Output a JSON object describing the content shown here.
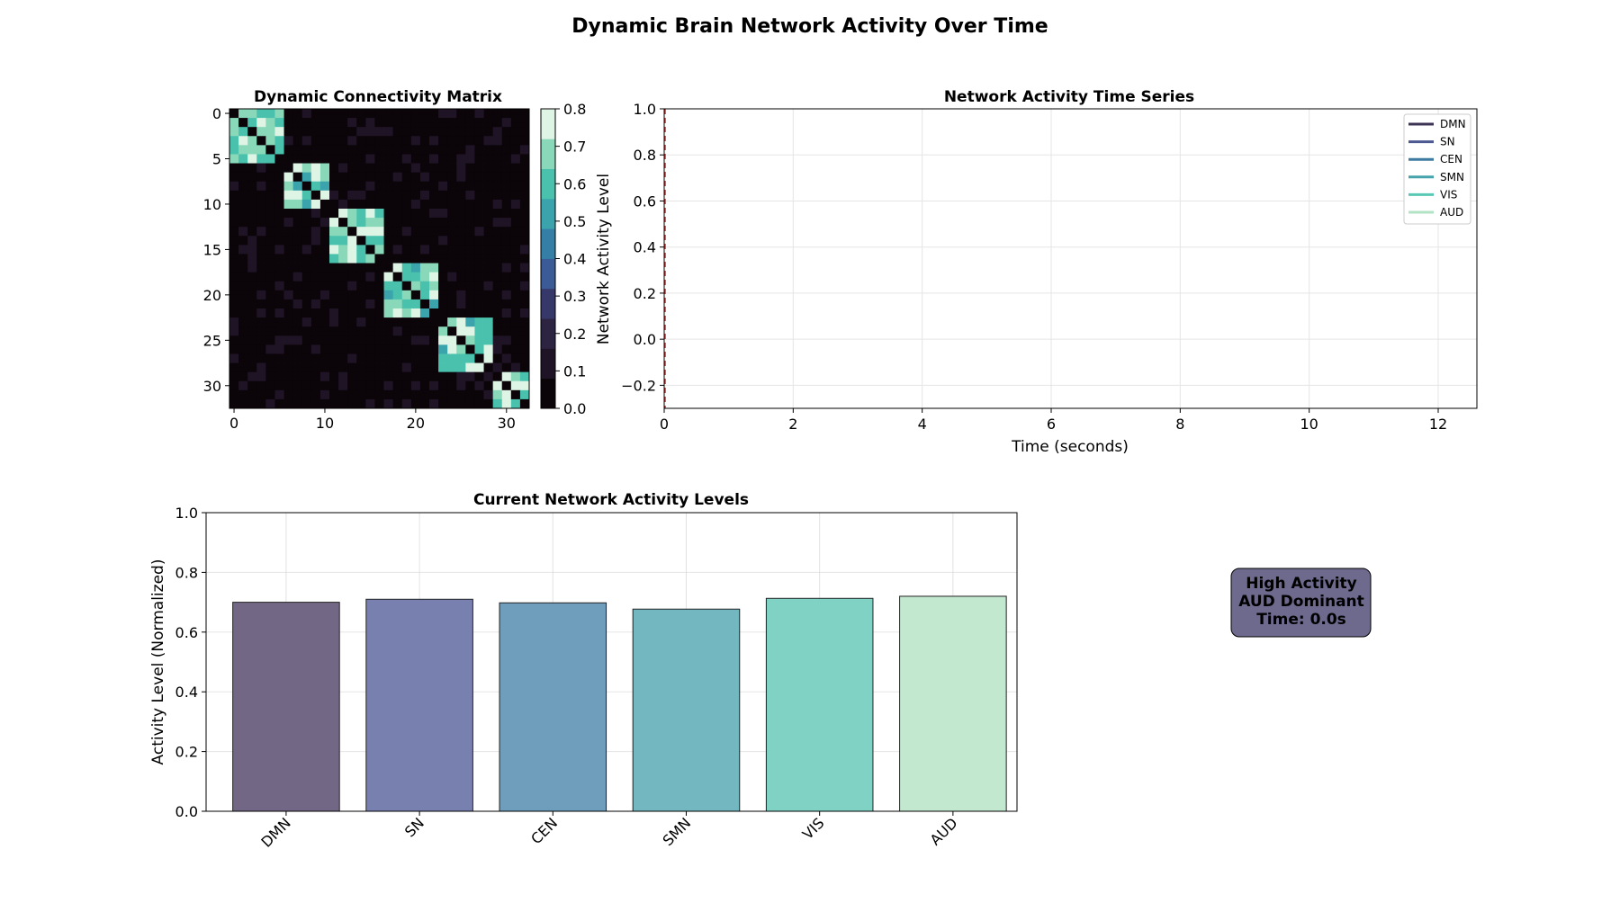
{
  "figure": {
    "title": "Dynamic Brain Network Activity Over Time"
  },
  "chart_data": [
    {
      "type": "heatmap",
      "title": "Dynamic Connectivity Matrix",
      "size": 33,
      "xlim": [
        0,
        32
      ],
      "ylim": [
        32,
        0
      ],
      "x_ticks": [
        0,
        10,
        20,
        30
      ],
      "y_ticks": [
        0,
        5,
        10,
        15,
        20,
        25,
        30
      ],
      "blocks": [
        {
          "start": 0,
          "end": 5
        },
        {
          "start": 6,
          "end": 10
        },
        {
          "start": 11,
          "end": 16
        },
        {
          "start": 17,
          "end": 22
        },
        {
          "start": 23,
          "end": 28
        },
        {
          "start": 29,
          "end": 32
        }
      ],
      "within_block_range": [
        0.55,
        0.8
      ],
      "background_range": [
        0.0,
        0.1
      ],
      "diagonal_value": 0.0,
      "colorbar": {
        "label": "Network Activity Level",
        "range": [
          0.0,
          0.8
        ],
        "ticks": [
          0.0,
          0.1,
          0.2,
          0.3,
          0.4,
          0.5,
          0.6,
          0.7,
          0.8
        ],
        "tick_labels": [
          "0.0",
          "0.1",
          "0.2",
          "0.3",
          "0.4",
          "0.5",
          "0.6",
          "0.7",
          "0.8"
        ],
        "colors": [
          "#0b0408",
          "#1e1425",
          "#2d2442",
          "#37386a",
          "#3b5b96",
          "#357fa6",
          "#3aa3ac",
          "#49c1ad",
          "#88d8b9",
          "#def5e5"
        ]
      }
    },
    {
      "type": "line",
      "title": "Network Activity Time Series",
      "xlabel": "Time (seconds)",
      "ylabel": "",
      "xlim": [
        0,
        12.6
      ],
      "ylim": [
        -0.3,
        1.0
      ],
      "x_ticks": [
        0,
        2,
        4,
        6,
        8,
        10,
        12
      ],
      "y_ticks": [
        1.0,
        0.8,
        0.6,
        0.4,
        0.2,
        0.0,
        -0.2
      ],
      "y_tick_labels": [
        "1.0",
        "0.8",
        "0.6",
        "0.4",
        "0.2",
        "0.0",
        "−0.2"
      ],
      "grid": true,
      "current_time_marker": 0.0,
      "legend_position": "top-right",
      "series": [
        {
          "name": "DMN",
          "color": "#3c3355",
          "x": [],
          "y": []
        },
        {
          "name": "SN",
          "color": "#4b5891",
          "x": [],
          "y": []
        },
        {
          "name": "CEN",
          "color": "#3f7ba0",
          "x": [],
          "y": []
        },
        {
          "name": "SMN",
          "color": "#44a3ab",
          "x": [],
          "y": []
        },
        {
          "name": "VIS",
          "color": "#59c8b5",
          "x": [],
          "y": []
        },
        {
          "name": "AUD",
          "color": "#b2e3c4",
          "x": [],
          "y": []
        }
      ]
    },
    {
      "type": "bar",
      "title": "Current Network Activity Levels",
      "xlabel": "",
      "ylabel": "Activity Level (Normalized)",
      "ylim": [
        0.0,
        1.0
      ],
      "y_ticks": [
        0.0,
        0.2,
        0.4,
        0.6,
        0.8,
        1.0
      ],
      "y_tick_labels": [
        "0.0",
        "0.2",
        "0.4",
        "0.6",
        "0.8",
        "1.0"
      ],
      "grid": true,
      "categories": [
        "DMN",
        "SN",
        "CEN",
        "SMN",
        "VIS",
        "AUD"
      ],
      "values": [
        0.7,
        0.71,
        0.698,
        0.677,
        0.713,
        0.72
      ],
      "colors": [
        "#726785",
        "#7880b0",
        "#6f9ebd",
        "#73b8c1",
        "#80d3c4",
        "#c2e8d0"
      ]
    }
  ],
  "status_box": {
    "line1": "High Activity",
    "line2": "AUD Dominant",
    "line3": "Time: 0.0s",
    "background": "#6e6a8e"
  }
}
